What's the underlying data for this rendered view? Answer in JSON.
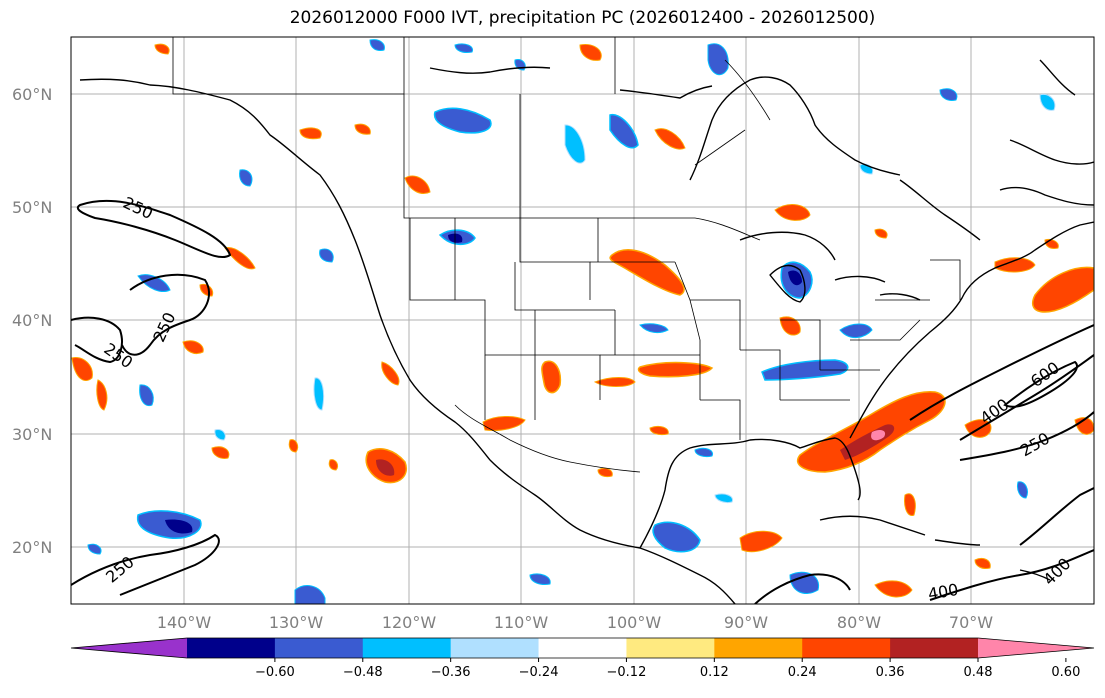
{
  "title": "2026012000 F000 IVT, precipitation PC (2026012400 - 2026012500)",
  "latitude_labels": [
    "60°N",
    "50°N",
    "40°N",
    "30°N",
    "20°N"
  ],
  "longitude_labels": [
    "140°W",
    "130°W",
    "120°W",
    "110°W",
    "100°W",
    "90°W",
    "80°W",
    "70°W"
  ],
  "ivt_contour_labels": [
    "250",
    "250",
    "250",
    "250",
    "400",
    "600",
    "250",
    "400",
    "400"
  ],
  "colorbar": {
    "colors": [
      "#9932cc",
      "#00008b",
      "#3a5bd1",
      "#00bfff",
      "#b0e0ff",
      "#ffffff",
      "#ffea80",
      "#ffa500",
      "#ff4500",
      "#b22222",
      "#ff85aa"
    ],
    "tick_labels": [
      "−0.60",
      "−0.48",
      "−0.36",
      "−0.24",
      "−0.12",
      "0.12",
      "0.24",
      "0.36",
      "0.48",
      "0.60"
    ]
  },
  "map_extent": {
    "lon_min": -150,
    "lon_max": -59,
    "lat_min": 15,
    "lat_max": 65
  }
}
